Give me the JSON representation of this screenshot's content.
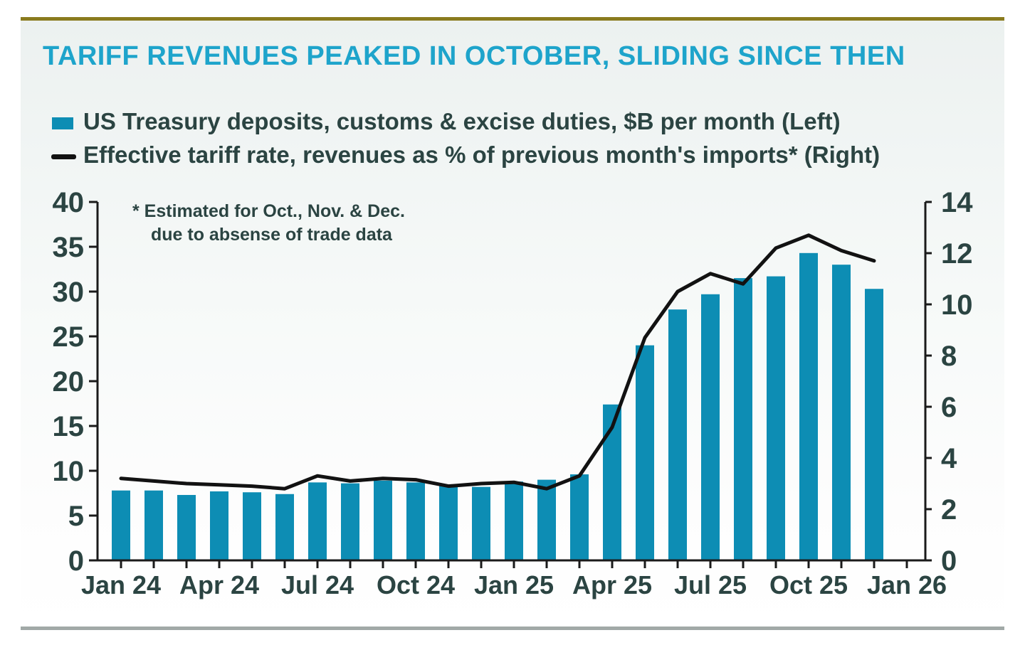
{
  "page": {
    "title": "TARIFF REVENUES PEAKED IN OCTOBER, SLIDING SINCE THEN",
    "annotation": {
      "line1": "* Estimated for Oct., Nov. & Dec.",
      "line2": "due to absense of trade data"
    }
  },
  "legend": {
    "items": [
      {
        "swatch": "bar-swatch",
        "label": "US Treasury deposits, customs & excise duties, $B per month (Left)"
      },
      {
        "swatch": "line-swatch",
        "label": "Effective tariff rate, revenues as % of previous month's imports* (Right)"
      }
    ]
  },
  "colors": {
    "bar": "#0d8db4",
    "line": "#121212",
    "title": "#1ea4cb",
    "text": "#2b4442",
    "axis": "#1a1a1a",
    "gold_rule": "#8a7b1e",
    "bottom_rule": "#a1a9a7",
    "card_bg": "#ecf1f0"
  },
  "chart_data": {
    "type": "bar+line",
    "title": "TARIFF REVENUES PEAKED IN OCTOBER, SLIDING SINCE THEN",
    "annotation": "* Estimated for Oct., Nov. & Dec. due to absense of trade data",
    "categories": [
      "Jan 24",
      "Feb 24",
      "Mar 24",
      "Apr 24",
      "May 24",
      "Jun 24",
      "Jul 24",
      "Aug 24",
      "Sep 24",
      "Oct 24",
      "Nov 24",
      "Dec 24",
      "Jan 25",
      "Feb 25",
      "Mar 25",
      "Apr 25",
      "May 25",
      "Jun 25",
      "Jul 25",
      "Aug 25",
      "Sep 25",
      "Oct 25",
      "Nov 25",
      "Dec 25"
    ],
    "x_axis_tick_labels": [
      "Jan 24",
      "Apr 24",
      "Jul 24",
      "Oct 24",
      "Jan 25",
      "Apr 25",
      "Jul 25",
      "Oct 25",
      "Jan 26"
    ],
    "series": [
      {
        "name": "US Treasury deposits, customs & excise duties, $B per month",
        "type": "bar",
        "axis": "left",
        "unit": "$B per month",
        "values": [
          7.8,
          7.8,
          7.3,
          7.7,
          7.6,
          7.4,
          8.7,
          8.6,
          8.9,
          8.7,
          8.3,
          8.2,
          8.8,
          9.0,
          9.6,
          17.4,
          24.0,
          28.0,
          29.7,
          31.5,
          31.7,
          34.3,
          33.0,
          30.3
        ]
      },
      {
        "name": "Effective tariff rate, revenues as % of previous month's imports",
        "type": "line",
        "axis": "right",
        "unit": "% of previous month's imports",
        "values": [
          3.2,
          3.1,
          3.0,
          2.95,
          2.9,
          2.8,
          3.3,
          3.1,
          3.2,
          3.15,
          2.9,
          3.0,
          3.05,
          2.8,
          3.3,
          5.2,
          8.7,
          10.5,
          11.2,
          10.8,
          12.2,
          12.7,
          12.1,
          11.7
        ]
      }
    ],
    "left_axis": {
      "min": 0,
      "max": 40,
      "step": 5,
      "ticks": [
        0,
        5,
        10,
        15,
        20,
        25,
        30,
        35,
        40
      ]
    },
    "right_axis": {
      "min": 0,
      "max": 14,
      "step": 2,
      "ticks": [
        0,
        2,
        4,
        6,
        8,
        10,
        12,
        14
      ]
    },
    "grid": false,
    "legend_position": "top-left"
  }
}
